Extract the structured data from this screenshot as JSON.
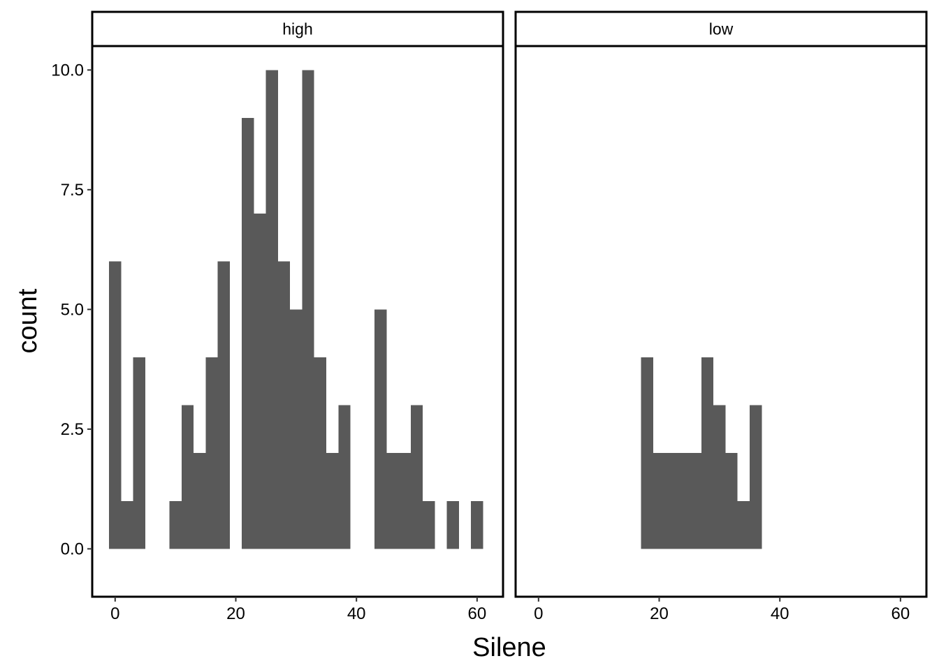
{
  "chart_data": {
    "type": "bar",
    "subtype": "histogram-faceted",
    "xlabel": "Silene",
    "ylabel": "count",
    "xlim": [
      -3.8,
      64.3
    ],
    "ylim": [
      -1.0,
      10.5
    ],
    "x_ticks": [
      0,
      20,
      40,
      60
    ],
    "x_tick_labels": [
      "0",
      "20",
      "40",
      "60"
    ],
    "y_ticks": [
      0,
      2.5,
      5,
      7.5,
      10
    ],
    "y_tick_labels": [
      "0.0",
      "2.5",
      "5.0",
      "7.5",
      "10.0"
    ],
    "bin_width": 2,
    "bar_color": "#595959",
    "grid": false,
    "legend": "none",
    "facets": [
      {
        "label": "high",
        "bins": [
          {
            "x0": -1,
            "x1": 1,
            "count": 6
          },
          {
            "x0": 1,
            "x1": 3,
            "count": 1
          },
          {
            "x0": 3,
            "x1": 5,
            "count": 4
          },
          {
            "x0": 9,
            "x1": 11,
            "count": 1
          },
          {
            "x0": 11,
            "x1": 13,
            "count": 3
          },
          {
            "x0": 13,
            "x1": 15,
            "count": 2
          },
          {
            "x0": 15,
            "x1": 17,
            "count": 4
          },
          {
            "x0": 17,
            "x1": 19,
            "count": 6
          },
          {
            "x0": 21,
            "x1": 23,
            "count": 9
          },
          {
            "x0": 23,
            "x1": 25,
            "count": 7
          },
          {
            "x0": 25,
            "x1": 27,
            "count": 10
          },
          {
            "x0": 27,
            "x1": 29,
            "count": 6
          },
          {
            "x0": 29,
            "x1": 31,
            "count": 5
          },
          {
            "x0": 31,
            "x1": 33,
            "count": 10
          },
          {
            "x0": 33,
            "x1": 35,
            "count": 4
          },
          {
            "x0": 35,
            "x1": 37,
            "count": 2
          },
          {
            "x0": 37,
            "x1": 39,
            "count": 3
          },
          {
            "x0": 43,
            "x1": 45,
            "count": 5
          },
          {
            "x0": 45,
            "x1": 47,
            "count": 2
          },
          {
            "x0": 47,
            "x1": 49,
            "count": 2
          },
          {
            "x0": 49,
            "x1": 51,
            "count": 3
          },
          {
            "x0": 51,
            "x1": 53,
            "count": 1
          },
          {
            "x0": 55,
            "x1": 57,
            "count": 1
          },
          {
            "x0": 59,
            "x1": 61,
            "count": 1
          }
        ]
      },
      {
        "label": "low",
        "bins": [
          {
            "x0": 17,
            "x1": 19,
            "count": 4
          },
          {
            "x0": 19,
            "x1": 21,
            "count": 2
          },
          {
            "x0": 21,
            "x1": 23,
            "count": 2
          },
          {
            "x0": 23,
            "x1": 25,
            "count": 2
          },
          {
            "x0": 25,
            "x1": 27,
            "count": 2
          },
          {
            "x0": 27,
            "x1": 29,
            "count": 4
          },
          {
            "x0": 29,
            "x1": 31,
            "count": 3
          },
          {
            "x0": 31,
            "x1": 33,
            "count": 2
          },
          {
            "x0": 33,
            "x1": 35,
            "count": 1
          },
          {
            "x0": 35,
            "x1": 37,
            "count": 3
          }
        ]
      }
    ]
  }
}
